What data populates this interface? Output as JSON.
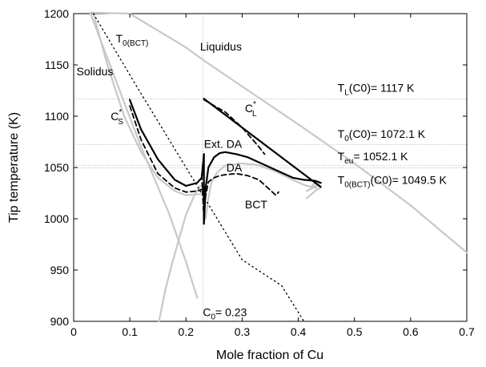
{
  "chart_data": {
    "type": "line",
    "xlabel": "Mole fraction of Cu",
    "ylabel": "Tip temperature (K)",
    "xlim": [
      0,
      0.7
    ],
    "ylim": [
      900,
      1200
    ],
    "xticks": [
      0,
      0.1,
      0.2,
      0.3,
      0.4,
      0.5,
      0.6,
      0.7
    ],
    "yticks": [
      900,
      950,
      1000,
      1050,
      1100,
      1150,
      1200
    ],
    "xtick_labels": [
      "0",
      "0.1",
      "0.2",
      "0.3",
      "0.4",
      "0.5",
      "0.6",
      "0.7"
    ],
    "ytick_labels": [
      "900",
      "950",
      "1000",
      "1050",
      "1100",
      "1150",
      "1200"
    ],
    "grid": false,
    "colors": {
      "phase_lines": "#c8c8c8",
      "main": "#000000",
      "reference": "#b0b0b0"
    },
    "reference_lines": [
      {
        "axis": "y",
        "value": 1117
      },
      {
        "axis": "y",
        "value": 1072.1
      },
      {
        "axis": "y",
        "value": 1052.1
      },
      {
        "axis": "y",
        "value": 1049.5
      },
      {
        "axis": "x",
        "value": 0.23
      }
    ],
    "series": [
      {
        "style": "solid-gray",
        "x": [
          0.035,
          0.06,
          0.09,
          0.12,
          0.15,
          0.18,
          0.2,
          0.22,
          0.235
        ],
        "y": [
          1200,
          1150,
          1100,
          1065,
          1040,
          1027,
          1023,
          1024,
          1024
        ]
      },
      {
        "style": "solid-gray",
        "x": [
          0.235,
          0.24,
          0.245,
          0.255,
          0.27,
          0.3,
          0.33,
          0.36,
          0.39,
          0.41,
          0.43,
          0.435,
          0.43,
          0.425
        ],
        "y": [
          1000,
          1020,
          1035,
          1045,
          1052,
          1054,
          1052,
          1046,
          1038,
          1033,
          1030,
          1033,
          1036,
          1032
        ]
      },
      {
        "style": "solid-gray",
        "x": [
          0.03,
          0.1,
          0.2,
          0.23,
          0.3,
          0.4,
          0.5,
          0.6,
          0.7
        ],
        "y": [
          1201,
          1200,
          1167,
          1155,
          1129,
          1092,
          1054,
          1013,
          967
        ]
      },
      {
        "style": "solid-gray",
        "x": [
          0.03,
          0.08,
          0.12,
          0.17,
          0.2,
          0.22
        ],
        "y": [
          1200,
          1128,
          1070,
          1005,
          958,
          923
        ]
      },
      {
        "style": "solid-gray",
        "x": [
          0.225,
          0.215,
          0.2,
          0.19,
          0.175,
          0.163,
          0.152
        ],
        "y": [
          1032,
          1023,
          1004,
          985,
          956,
          930,
          900
        ]
      },
      {
        "style": "solid-gray",
        "x": [
          0.415,
          0.43,
          0.44,
          0.435,
          0.425,
          0.415
        ],
        "y": [
          1020,
          1027,
          1031,
          1034,
          1030,
          1027
        ]
      },
      {
        "style": "dotted",
        "x": [
          0.035,
          0.11,
          0.2,
          0.3,
          0.37,
          0.41
        ],
        "y": [
          1200,
          1131,
          1050,
          960,
          935,
          900
        ]
      },
      {
        "style": "solid-bold",
        "x": [
          0.1,
          0.12,
          0.15,
          0.18,
          0.2,
          0.22,
          0.228,
          0.232
        ],
        "y": [
          1116,
          1087,
          1058,
          1038,
          1032,
          1035,
          1040,
          1063
        ]
      },
      {
        "style": "solid-bold",
        "x": [
          0.232,
          0.232,
          0.235,
          0.24,
          0.25,
          0.26,
          0.27,
          0.29,
          0.31,
          0.33,
          0.35,
          0.37,
          0.39,
          0.41,
          0.43,
          0.44
        ],
        "y": [
          1063,
          995,
          1030,
          1050,
          1060,
          1064,
          1065,
          1063,
          1060,
          1055,
          1050,
          1045,
          1040,
          1038,
          1037,
          1035
        ]
      },
      {
        "style": "solid-bold",
        "x": [
          0.232,
          0.44
        ],
        "y": [
          1117,
          1031
        ]
      },
      {
        "style": "dashed-bold",
        "x": [
          0.1,
          0.12,
          0.15,
          0.18,
          0.2,
          0.22,
          0.23
        ],
        "y": [
          1110,
          1077,
          1044,
          1030,
          1026,
          1027,
          1029
        ]
      },
      {
        "style": "dashed-bold",
        "x": [
          0.228,
          0.232,
          0.235,
          0.24,
          0.25,
          0.26,
          0.27,
          0.29,
          0.31,
          0.33,
          0.35,
          0.36,
          0.365
        ],
        "y": [
          1043,
          1000,
          1022,
          1036,
          1040,
          1042,
          1043,
          1044,
          1042,
          1038,
          1028,
          1023,
          1026
        ]
      },
      {
        "style": "dashed-bold",
        "x": [
          0.232,
          0.27,
          0.3,
          0.33,
          0.34
        ],
        "y": [
          1116,
          1104,
          1089,
          1070,
          1063
        ]
      }
    ],
    "annotations": [
      {
        "text": "Solidus",
        "x": 0.005,
        "y": 1140
      },
      {
        "text": "Liquidus",
        "x": 0.225,
        "y": 1164
      },
      {
        "text": "T",
        "sub": "0(BCT)",
        "x": 0.075,
        "y": 1172
      },
      {
        "text": "C",
        "sub": "S",
        "sup": "*",
        "x": 0.066,
        "y": 1096
      },
      {
        "text": "C",
        "sub": "L",
        "sup": "*",
        "x": 0.305,
        "y": 1104
      },
      {
        "text": "Ext. DA",
        "x": 0.232,
        "y": 1069
      },
      {
        "text": "DA",
        "x": 0.272,
        "y": 1046
      },
      {
        "text": "BCT",
        "x": 0.305,
        "y": 1010
      },
      {
        "text": "C",
        "sub": "0",
        "tail": "= 0.23",
        "x": 0.23,
        "y": 905
      },
      {
        "text": "T",
        "sub": "L",
        "tail": "(C0)= 1117 K",
        "x": 0.47,
        "y": 1124
      },
      {
        "text": "T",
        "sub": "0",
        "tail": "(C0)= 1072.1 K",
        "x": 0.47,
        "y": 1079
      },
      {
        "text": "T",
        "sub": "eu",
        "tail": "= 1052.1 K",
        "x": 0.47,
        "y": 1057
      },
      {
        "text": "T",
        "sub": "0(BCT)",
        "tail": "(C0)= 1049.5 K",
        "x": 0.47,
        "y": 1034
      }
    ]
  }
}
